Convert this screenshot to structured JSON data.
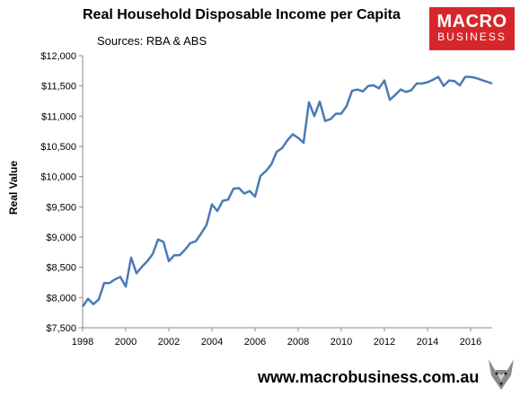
{
  "chart_data": {
    "type": "line",
    "title": "Real Household Disposable Income per Capita",
    "subtitle": "Sources: RBA & ABS",
    "ylabel": "Real Value",
    "xlabel": "",
    "xlim": [
      1998,
      2017
    ],
    "ylim": [
      7500,
      12000
    ],
    "grid": false,
    "x_ticks": [
      "1998",
      "2000",
      "2002",
      "2004",
      "2006",
      "2008",
      "2010",
      "2012",
      "2014",
      "2016"
    ],
    "y_ticks": [
      "$7,500",
      "$8,000",
      "$8,500",
      "$9,000",
      "$9,500",
      "$10,000",
      "$10,500",
      "$11,000",
      "$11,500",
      "$12,000"
    ],
    "series": [
      {
        "color": "#4a7ab5",
        "x": [
          1998.0,
          1998.25,
          1998.5,
          1998.75,
          1999.0,
          1999.25,
          1999.5,
          1999.75,
          2000.0,
          2000.25,
          2000.5,
          2000.75,
          2001.0,
          2001.25,
          2001.5,
          2001.75,
          2002.0,
          2002.25,
          2002.5,
          2002.75,
          2003.0,
          2003.25,
          2003.5,
          2003.75,
          2004.0,
          2004.25,
          2004.5,
          2004.75,
          2005.0,
          2005.25,
          2005.5,
          2005.75,
          2006.0,
          2006.25,
          2006.5,
          2006.75,
          2007.0,
          2007.25,
          2007.5,
          2007.75,
          2008.0,
          2008.25,
          2008.5,
          2008.75,
          2009.0,
          2009.25,
          2009.5,
          2009.75,
          2010.0,
          2010.25,
          2010.5,
          2010.75,
          2011.0,
          2011.25,
          2011.5,
          2011.75,
          2012.0,
          2012.25,
          2012.5,
          2012.75,
          2013.0,
          2013.25,
          2013.5,
          2013.75,
          2014.0,
          2014.25,
          2014.5,
          2014.75,
          2015.0,
          2015.25,
          2015.5,
          2015.75,
          2016.0,
          2016.25,
          2016.5,
          2016.75,
          2017.0
        ],
        "values": [
          7850,
          7980,
          7890,
          7970,
          8240,
          8240,
          8300,
          8340,
          8180,
          8660,
          8400,
          8510,
          8600,
          8720,
          8960,
          8920,
          8600,
          8700,
          8700,
          8790,
          8900,
          8930,
          9060,
          9200,
          9540,
          9430,
          9600,
          9620,
          9800,
          9810,
          9720,
          9760,
          9670,
          10010,
          10090,
          10200,
          10410,
          10470,
          10600,
          10700,
          10640,
          10560,
          11230,
          11000,
          11240,
          10920,
          10950,
          11040,
          11040,
          11170,
          11420,
          11440,
          11410,
          11500,
          11510,
          11460,
          11590,
          11270,
          11350,
          11440,
          11400,
          11430,
          11540,
          11540,
          11560,
          11600,
          11650,
          11500,
          11590,
          11580,
          11510,
          11650,
          11650,
          11630,
          11600,
          11570,
          11540
        ]
      }
    ]
  },
  "logo": {
    "line1": "MACRO",
    "line2": "BUSINESS"
  },
  "footer": {
    "url": "www.macrobusiness.com.au"
  }
}
